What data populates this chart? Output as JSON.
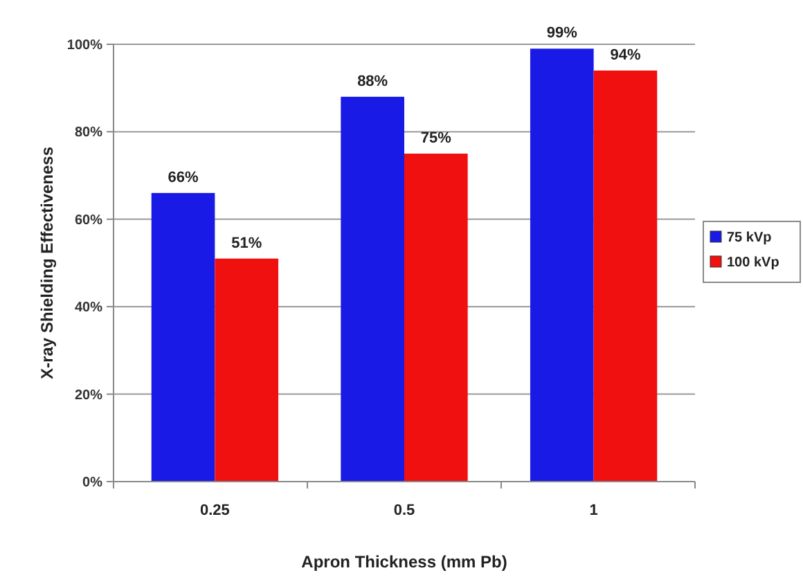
{
  "chart_data": {
    "type": "bar",
    "xlabel": "Apron Thickness (mm Pb)",
    "ylabel": "X-ray Shielding Effectiveness",
    "categories": [
      "0.25",
      "0.5",
      "1"
    ],
    "series": [
      {
        "name": "75 kVp",
        "color": "#1a1ae6",
        "values": [
          66,
          88,
          99
        ],
        "value_labels": [
          "66%",
          "88%",
          "99%"
        ]
      },
      {
        "name": "100 kVp",
        "color": "#f01010",
        "values": [
          51,
          75,
          94
        ],
        "value_labels": [
          "51%",
          "75%",
          "94%"
        ]
      }
    ],
    "ylim": [
      0,
      100
    ],
    "yticks": [
      {
        "value": 0,
        "label": "0%"
      },
      {
        "value": 20,
        "label": "20%"
      },
      {
        "value": 40,
        "label": "40%"
      },
      {
        "value": 60,
        "label": "60%"
      },
      {
        "value": 80,
        "label": "80%"
      },
      {
        "value": 100,
        "label": "100%"
      }
    ],
    "grid": "y",
    "legend": "right"
  }
}
